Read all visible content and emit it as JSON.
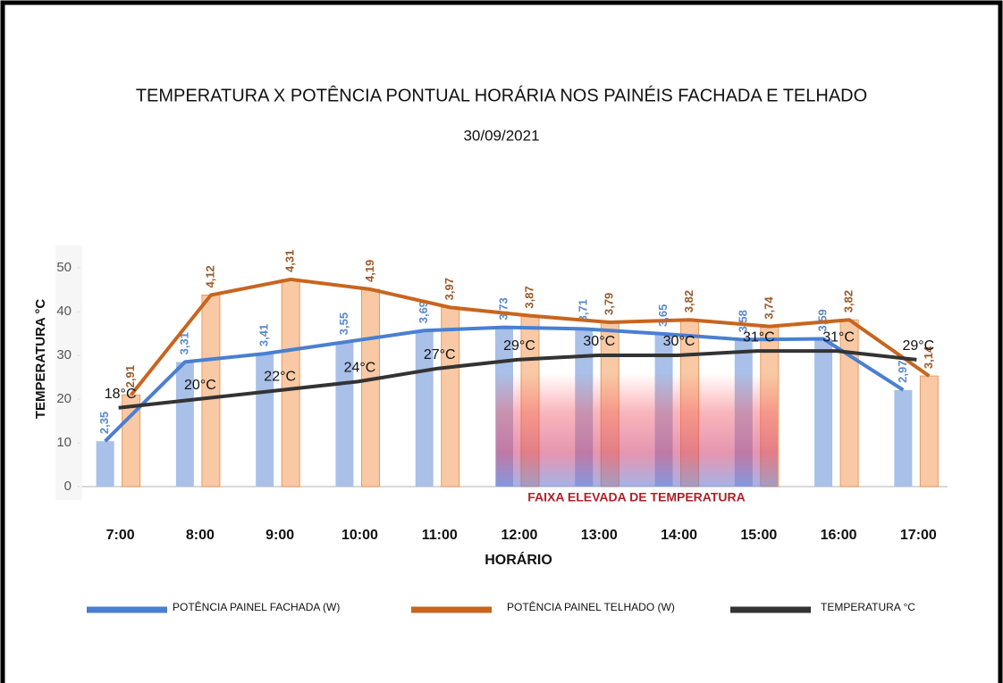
{
  "chart_data": {
    "type": "bar-line",
    "title": "TEMPERATURA X POTÊNCIA PONTUAL HORÁRIA  NOS PAINÉIS FACHADA E TELHADO",
    "subtitle": "30/09/2021",
    "y_label": "TEMPERATURA °C",
    "x_label": "HORÁRIO",
    "categories": [
      "7:00",
      "8:00",
      "9:00",
      "10:00",
      "11:00",
      "12:00",
      "13:00",
      "14:00",
      "15:00",
      "16:00",
      "17:00"
    ],
    "series": [
      {
        "name": "POTÊNCIA PAINEL FACHADA (W)",
        "color": "#4a7fd1",
        "bar_color": "#a9c0e8",
        "axis": "y2",
        "values": [
          2.35,
          3.31,
          3.41,
          3.55,
          3.69,
          3.73,
          3.71,
          3.65,
          3.58,
          3.59,
          2.97
        ],
        "value_labels": [
          "2,35",
          "3,31",
          "3,41",
          "3,55",
          "3,69",
          "3,73",
          "3,71",
          "3,65",
          "3,58",
          "3,59",
          "2,97"
        ]
      },
      {
        "name": "POTÊNCIA PAINEL TELHADO (W)",
        "color": "#c8651f",
        "bar_color": "#f8c9a4",
        "axis": "y2",
        "values": [
          2.91,
          4.12,
          4.31,
          4.19,
          3.97,
          3.87,
          3.79,
          3.82,
          3.74,
          3.82,
          3.14
        ],
        "value_labels": [
          "2,91",
          "4,12",
          "4,31",
          "4,19",
          "3,97",
          "3,87",
          "3,79",
          "3,82",
          "3,74",
          "3,82",
          "3,14"
        ]
      },
      {
        "name": "TEMPERATURA °C",
        "color": "#333333",
        "axis": "y",
        "values": [
          18,
          20,
          22,
          24,
          27,
          29,
          30,
          30,
          31,
          31,
          29
        ],
        "value_labels": [
          "18°C",
          "20°C",
          "22°C",
          "24°C",
          "27°C",
          "29°C",
          "30°C",
          "30°C",
          "31°C",
          "31°C",
          "29°C"
        ]
      }
    ],
    "ylim": [
      0,
      50
    ],
    "yticks": [
      0,
      10,
      20,
      30,
      40,
      50
    ],
    "y2lim": [
      1.8,
      4.45
    ],
    "annotation": "FAIXA ELEVADA DE TEMPERATURA"
  }
}
